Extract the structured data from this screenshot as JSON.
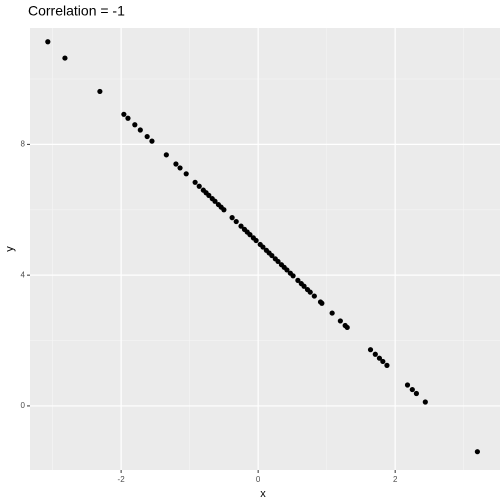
{
  "chart_data": {
    "type": "scatter",
    "title": "Correlation = -1",
    "x_label": "x",
    "y_label": "y",
    "color": "#000000",
    "x": [
      -3.07,
      -2.82,
      -2.31,
      -1.96,
      -1.9,
      -1.8,
      -1.72,
      -1.62,
      -1.55,
      -1.34,
      -1.2,
      -1.14,
      -1.05,
      -0.92,
      -0.86,
      -0.8,
      -0.76,
      -0.72,
      -0.67,
      -0.63,
      -0.58,
      -0.54,
      -0.5,
      -0.38,
      -0.32,
      -0.25,
      -0.2,
      -0.16,
      -0.12,
      -0.07,
      -0.03,
      0.03,
      0.07,
      0.12,
      0.16,
      0.2,
      0.25,
      0.29,
      0.34,
      0.38,
      0.42,
      0.47,
      0.51,
      0.58,
      0.63,
      0.67,
      0.72,
      0.76,
      0.82,
      0.91,
      0.93,
      1.08,
      1.2,
      1.27,
      1.3,
      1.64,
      1.71,
      1.77,
      1.82,
      1.88,
      2.18,
      2.25,
      2.31,
      2.44,
      3.2
    ],
    "values": [
      11.14,
      10.64,
      9.62,
      8.92,
      8.8,
      8.6,
      8.44,
      8.24,
      8.1,
      7.68,
      7.4,
      7.28,
      7.1,
      6.84,
      6.72,
      6.6,
      6.52,
      6.44,
      6.34,
      6.26,
      6.16,
      6.08,
      6.0,
      5.76,
      5.64,
      5.5,
      5.4,
      5.32,
      5.24,
      5.14,
      5.06,
      4.94,
      4.86,
      4.76,
      4.68,
      4.6,
      4.5,
      4.42,
      4.32,
      4.24,
      4.16,
      4.06,
      3.98,
      3.84,
      3.74,
      3.66,
      3.56,
      3.48,
      3.36,
      3.18,
      3.14,
      2.84,
      2.6,
      2.46,
      2.4,
      1.72,
      1.58,
      1.46,
      1.36,
      1.24,
      0.64,
      0.5,
      0.38,
      0.12,
      -1.4
    ],
    "xlim": [
      -3.33,
      3.53
    ],
    "ylim": [
      -1.96,
      11.56
    ],
    "xticks": [
      -2,
      0,
      2
    ],
    "yticks": [
      0,
      4,
      8
    ],
    "x_minor_gridlines": [
      -3,
      -1,
      1,
      3
    ],
    "y_minor_gridlines": [
      2,
      6,
      10
    ],
    "grid": true
  }
}
